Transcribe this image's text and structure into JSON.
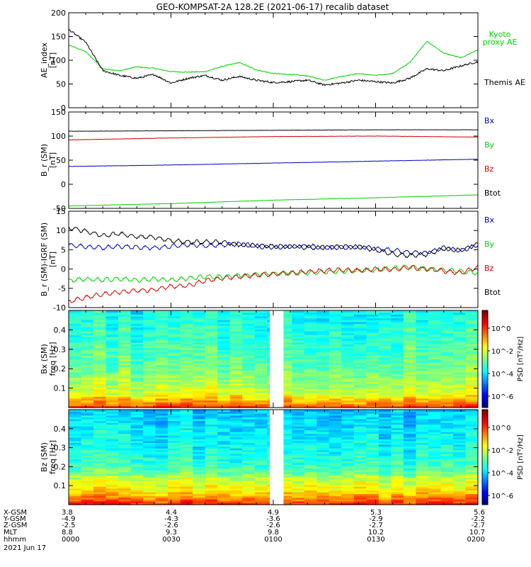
{
  "title": "GEO-KOMPSAT-2A 128.2E (2021-06-17) recalib dataset",
  "chart_data": [
    {
      "type": "line",
      "panel": "ae",
      "ylabel": "AE_index",
      "yunit": "[nT]",
      "ylim": [
        0,
        200
      ],
      "yticks": [
        "0",
        "50",
        "100",
        "150",
        "200"
      ],
      "grid": false,
      "legend": [
        "Kyoto",
        "proxy AE",
        "Themis AE"
      ],
      "x_hhmm": [
        0,
        5,
        10,
        15,
        20,
        25,
        30,
        35,
        40,
        45,
        50,
        55,
        60,
        65,
        70,
        75,
        80,
        85,
        90,
        95,
        100,
        105,
        110,
        115,
        120
      ],
      "series": [
        {
          "name": "Kyoto proxy AE",
          "color": "#00d000",
          "values": [
            132,
            118,
            82,
            78,
            86,
            83,
            76,
            75,
            76,
            87,
            95,
            80,
            72,
            70,
            67,
            58,
            66,
            72,
            68,
            72,
            95,
            140,
            115,
            105,
            122
          ]
        },
        {
          "name": "Themis AE",
          "color": "#000000",
          "values": [
            165,
            138,
            78,
            68,
            62,
            70,
            52,
            62,
            68,
            58,
            66,
            58,
            53,
            55,
            58,
            48,
            52,
            58,
            55,
            52,
            62,
            82,
            78,
            88,
            97
          ]
        }
      ]
    },
    {
      "type": "line",
      "panel": "b_sm",
      "ylabel": "B_r (SM)",
      "yunit": "[nT]",
      "ylim": [
        -50,
        150
      ],
      "yticks": [
        "-50",
        "0",
        "50",
        "100",
        "150"
      ],
      "grid": false,
      "legend": [
        "Bx",
        "By",
        "Bz",
        "Btot"
      ],
      "x_hhmm": [
        0,
        30,
        60,
        90,
        120
      ],
      "series": [
        {
          "name": "Bx",
          "color": "#0000c0",
          "values": [
            37,
            40,
            44,
            48,
            52
          ]
        },
        {
          "name": "By",
          "color": "#00d000",
          "values": [
            -45,
            -40,
            -33,
            -28,
            -22
          ]
        },
        {
          "name": "Bz",
          "color": "#d00000",
          "values": [
            92,
            96,
            99,
            100,
            98
          ]
        },
        {
          "name": "Btot",
          "color": "#000000",
          "values": [
            110,
            111,
            112,
            113,
            113
          ]
        }
      ]
    },
    {
      "type": "line",
      "panel": "b_igrf",
      "ylabel": "B_r (SM)-IGRF (SM)",
      "yunit": "[nT]",
      "ylim": [
        -10,
        15
      ],
      "yticks": [
        "-10",
        "-5",
        "0",
        "5",
        "10",
        "15"
      ],
      "grid": false,
      "legend": [
        "Bx",
        "By",
        "Bz",
        "Btot"
      ],
      "x_hhmm": [
        0,
        5,
        10,
        15,
        20,
        25,
        30,
        35,
        40,
        45,
        50,
        55,
        60,
        65,
        70,
        75,
        80,
        85,
        90,
        95,
        100,
        105,
        110,
        115,
        120
      ],
      "series": [
        {
          "name": "Bx",
          "color": "#0000c0",
          "values": [
            6.2,
            5.8,
            5.5,
            5.9,
            5.6,
            5.5,
            5.8,
            6.3,
            6.0,
            6.3,
            6.5,
            5.9,
            5.6,
            5.8,
            6.0,
            5.6,
            5.6,
            5.8,
            5.3,
            4.9,
            4.3,
            4.2,
            5.5,
            4.8,
            6.2
          ]
        },
        {
          "name": "By",
          "color": "#00d000",
          "values": [
            -3.0,
            -2.6,
            -2.8,
            -2.5,
            -2.9,
            -2.6,
            -2.9,
            -2.4,
            -2.0,
            -2.0,
            -1.7,
            -1.4,
            -1.2,
            -1.0,
            -1.0,
            -0.8,
            -0.6,
            -0.4,
            -0.3,
            0.2,
            0.6,
            0.0,
            -0.2,
            -0.6,
            -1.0
          ]
        },
        {
          "name": "Bz",
          "color": "#d00000",
          "values": [
            -8.4,
            -7.4,
            -6.5,
            -6.0,
            -5.6,
            -5.4,
            -4.5,
            -4.3,
            -3.0,
            -2.4,
            -2.0,
            -1.6,
            -1.3,
            -1.0,
            -0.7,
            -0.4,
            -0.2,
            -0.4,
            0.0,
            -0.1,
            0.4,
            0.0,
            -0.5,
            -1.0,
            0.5
          ]
        },
        {
          "name": "Btot",
          "color": "#000000",
          "values": [
            10.8,
            9.8,
            8.6,
            9.2,
            8.4,
            8.3,
            7.3,
            7.0,
            7.0,
            7.0,
            6.3,
            6.1,
            5.9,
            5.9,
            5.6,
            5.6,
            5.8,
            5.7,
            5.0,
            3.9,
            3.5,
            3.8,
            5.3,
            4.8,
            6.5
          ]
        }
      ]
    },
    {
      "type": "heatmap",
      "panel": "bx_psd",
      "ylabel": "Bx (SM)",
      "ylabel2": "freq [Hz]",
      "ylim": [
        0,
        0.5
      ],
      "yticks": [
        "0.1",
        "0.2",
        "0.3",
        "0.4"
      ],
      "colorbar_label": "PSD [nT²/Hz]",
      "colorbar_ticks": [
        "10^0",
        "10^-2",
        "10^-4",
        "10^-6"
      ],
      "data_gap_hhmm": [
        59,
        63
      ],
      "psd_profile_log10": [
        0.6,
        -1.4,
        -2.0,
        -2.5,
        -2.7,
        -2.9,
        -3.1,
        -3.3
      ]
    },
    {
      "type": "heatmap",
      "panel": "bz_psd",
      "ylabel": "Bz (SM)",
      "ylabel2": "freq [Hz]",
      "ylim": [
        0,
        0.5
      ],
      "yticks": [
        "0.1",
        "0.2",
        "0.3",
        "0.4"
      ],
      "colorbar_label": "PSD [nT²/Hz]",
      "colorbar_ticks": [
        "10^0",
        "10^-2",
        "10^-4",
        "10^-6"
      ],
      "data_gap_hhmm": [
        59,
        63
      ],
      "psd_profile_log10": [
        0.8,
        -1.0,
        -1.8,
        -2.6,
        -2.9,
        -3.1,
        -3.3,
        -3.5
      ]
    }
  ],
  "ephemeris": {
    "row_labels": [
      "X-GSM",
      "Y-GSM",
      "Z-GSM",
      "MLT",
      "hhmm"
    ],
    "date_label": "2021 Jun 17",
    "columns": [
      {
        "values": [
          "3.8",
          "-4.9",
          "-2.5",
          "8.8",
          "0000"
        ]
      },
      {
        "values": [
          "4.4",
          "-4.3",
          "-2.6",
          "9.3",
          "0030"
        ]
      },
      {
        "values": [
          "4.9",
          "-3.6",
          "-2.6",
          "9.8",
          "0100"
        ]
      },
      {
        "values": [
          "5.3",
          "-2.9",
          "-2.7",
          "10.2",
          "0130"
        ]
      },
      {
        "values": [
          "5.6",
          "-2.2",
          "-2.7",
          "10.7",
          "0200"
        ]
      }
    ]
  }
}
